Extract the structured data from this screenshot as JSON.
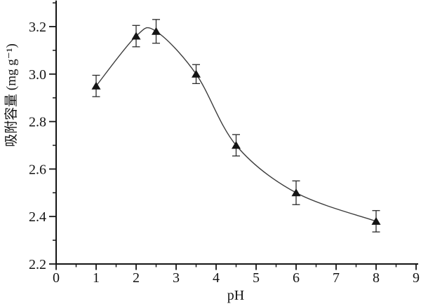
{
  "chart_data": {
    "type": "scatter-line",
    "title": "",
    "xlabel": "pH",
    "ylabel": "吸附容量 (mg g⁻¹)",
    "series": [
      {
        "name": "adsorption-capacity",
        "marker": "filled-up-triangle",
        "x": [
          1,
          2,
          2.5,
          3.5,
          4.5,
          6,
          8
        ],
        "y": [
          2.95,
          3.16,
          3.18,
          3.0,
          2.7,
          2.5,
          2.38
        ],
        "yerr": [
          0.045,
          0.045,
          0.05,
          0.04,
          0.045,
          0.05,
          0.045
        ],
        "fit_curve": "smooth-spline-through-points"
      }
    ],
    "xlim": [
      0,
      9
    ],
    "ylim": [
      2.2,
      3.31
    ],
    "x_major_ticks": [
      0,
      1,
      2,
      3,
      4,
      5,
      6,
      7,
      8,
      9
    ],
    "x_tick_labels": [
      "0",
      "1",
      "2",
      "3",
      "4",
      "5",
      "6",
      "7",
      "8",
      "9"
    ],
    "x_minor_ticks": [
      0.5,
      1.5,
      2.5,
      3.5,
      4.5,
      5.5,
      6.5,
      7.5,
      8.5
    ],
    "y_major_ticks": [
      2.2,
      2.4,
      2.6,
      2.8,
      3.0,
      3.2
    ],
    "y_tick_labels": [
      "2.2",
      "2.4",
      "2.6",
      "2.8",
      "3.0",
      "3.2"
    ],
    "y_minor_ticks": [
      2.3,
      2.5,
      2.7,
      2.9,
      3.1,
      3.3
    ],
    "grid": false,
    "legend": false,
    "tick_direction": "out",
    "colors": {
      "axis": "#141414",
      "text": "#141414",
      "marker": "#141414",
      "error_bar": "#2a2a2a",
      "curve": "#3d3d3d",
      "background": "#ffffff"
    }
  }
}
